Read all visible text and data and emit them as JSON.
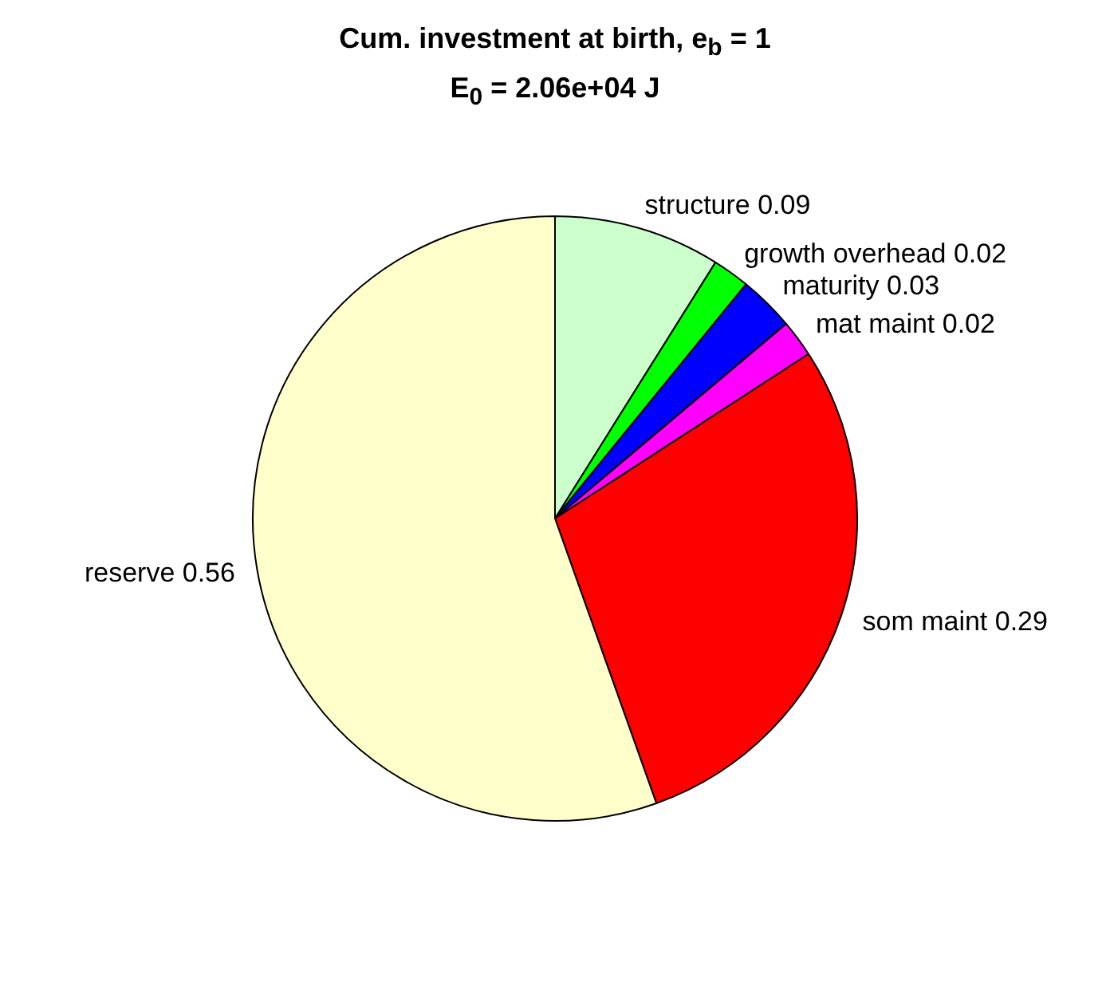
{
  "chart_data": {
    "type": "pie",
    "title": "Cum. investment at birth, e$_{b}$ = 1",
    "subtitle": "E$_{0}$ = 2.06e+04 J",
    "categories": [
      "structure",
      "growth overhead",
      "maturity",
      "mat maint",
      "som maint",
      "reserve"
    ],
    "values": [
      0.09,
      0.02,
      0.03,
      0.02,
      0.29,
      0.56
    ],
    "colors": [
      "#ccffcc",
      "#00ff00",
      "#0000ff",
      "#ff00ff",
      "#ff0000",
      "#ffffcc"
    ],
    "data_labels": true,
    "legend": false
  }
}
